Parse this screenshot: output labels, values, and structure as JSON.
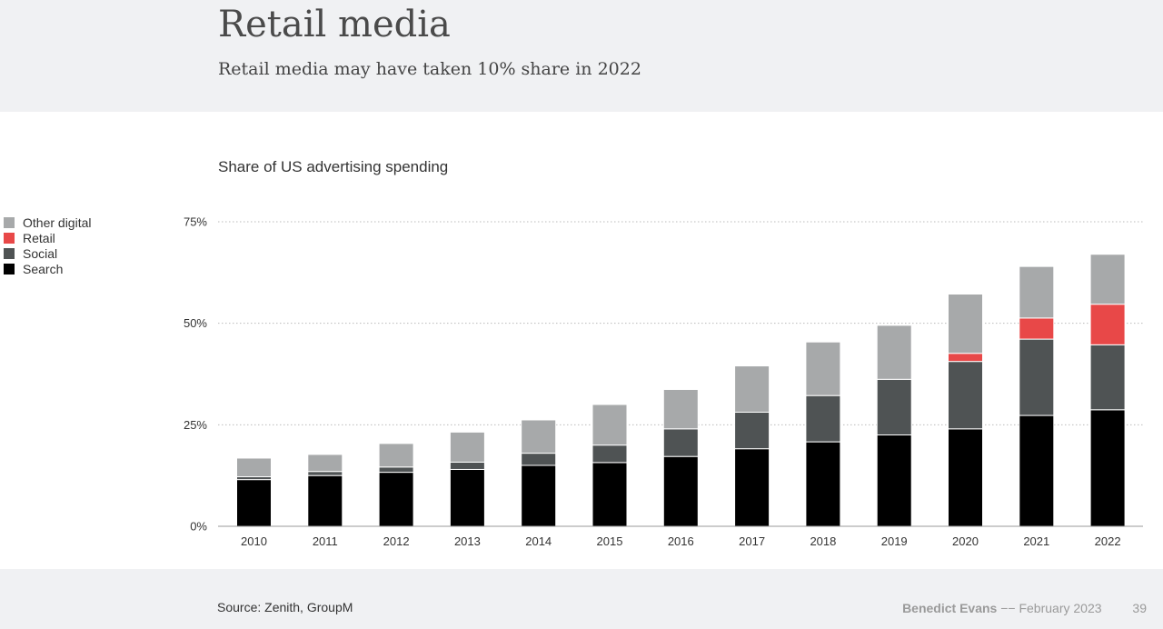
{
  "header": {
    "title": "Retail media",
    "subtitle": "Retail media may have taken 10% share in 2022"
  },
  "footer": {
    "source": "Source: Zenith, GroupM",
    "author": "Benedict Evans",
    "separator": "−−",
    "date": "February 2023",
    "page_number": "39"
  },
  "colors": {
    "search": "#000000",
    "social": "#4f5354",
    "retail": "#e84848",
    "other_digital": "#a7a9aa",
    "gridline": "#bbbbbb",
    "axis": "#999999"
  },
  "chart_data": {
    "type": "bar",
    "stacked": true,
    "title": "Share of US advertising spending",
    "xlabel": "",
    "ylabel": "",
    "ylim": [
      0,
      75
    ],
    "yticks": [
      0,
      25,
      50,
      75
    ],
    "ytick_labels": [
      "0%",
      "25%",
      "50%",
      "75%"
    ],
    "grid": true,
    "legend_position": "left",
    "categories": [
      "2010",
      "2011",
      "2012",
      "2013",
      "2014",
      "2015",
      "2016",
      "2017",
      "2018",
      "2019",
      "2020",
      "2021",
      "2022"
    ],
    "series": [
      {
        "name": "Search",
        "color": "#000000",
        "values": [
          11.5,
          12.5,
          13.3,
          14.0,
          15.0,
          15.7,
          17.2,
          19.1,
          20.8,
          22.5,
          24.0,
          27.3,
          28.7
        ]
      },
      {
        "name": "Social",
        "color": "#4f5354",
        "values": [
          0.7,
          1.0,
          1.3,
          1.8,
          3.0,
          4.3,
          6.8,
          9.0,
          11.4,
          13.7,
          16.6,
          18.8,
          16.0
        ]
      },
      {
        "name": "Retail",
        "color": "#e84848",
        "values": [
          0,
          0,
          0,
          0,
          0,
          0,
          0,
          0,
          0,
          0,
          2.0,
          5.2,
          10.0
        ]
      },
      {
        "name": "Other digital",
        "color": "#a7a9aa",
        "values": [
          4.6,
          4.2,
          5.8,
          7.4,
          8.2,
          10.0,
          9.7,
          11.4,
          13.2,
          13.3,
          14.6,
          12.7,
          12.3
        ]
      }
    ],
    "legend_order": [
      "Other digital",
      "Retail",
      "Social",
      "Search"
    ]
  }
}
